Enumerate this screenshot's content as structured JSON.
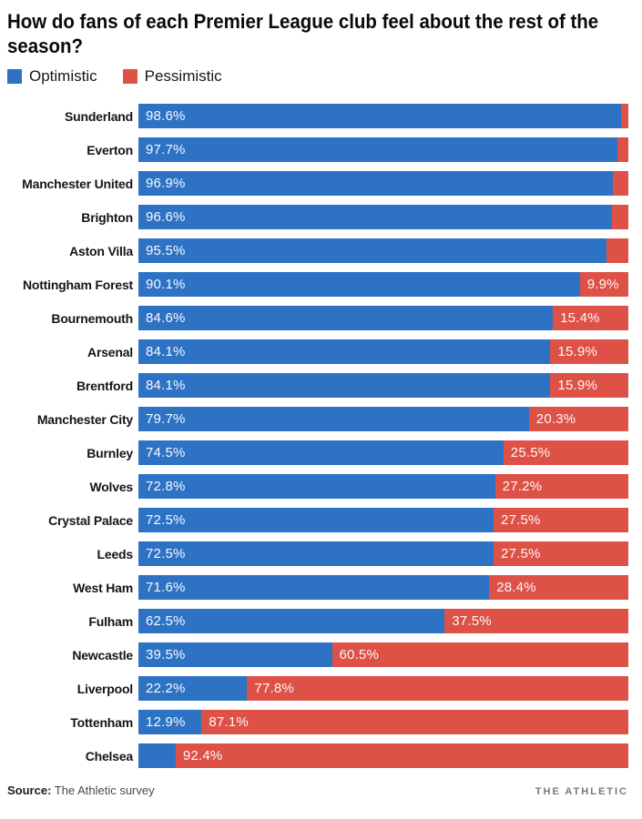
{
  "title": {
    "line1": "How do fans of each Premier League club feel about the rest of the",
    "line2": "season?"
  },
  "legend": {
    "items": [
      {
        "label": "Optimistic",
        "color": "#2e72c4"
      },
      {
        "label": "Pessimistic",
        "color": "#dd5147"
      }
    ]
  },
  "chart_data": {
    "type": "bar",
    "orientation": "horizontal",
    "stacked": true,
    "xlim": [
      0,
      100
    ],
    "unit": "%",
    "legend_position": "top",
    "grid": false,
    "categories": [
      "Sunderland",
      "Everton",
      "Manchester United",
      "Brighton",
      "Aston Villa",
      "Nottingham Forest",
      "Bournemouth",
      "Arsenal",
      "Brentford",
      "Manchester City",
      "Burnley",
      "Wolves",
      "Crystal Palace",
      "Leeds",
      "West Ham",
      "Fulham",
      "Newcastle",
      "Liverpool",
      "Tottenham",
      "Chelsea"
    ],
    "series": [
      {
        "name": "Optimistic",
        "color": "#2e72c4",
        "values": [
          98.6,
          97.7,
          96.9,
          96.6,
          95.5,
          90.1,
          84.6,
          84.1,
          84.1,
          79.7,
          74.5,
          72.8,
          72.5,
          72.5,
          71.6,
          62.5,
          39.5,
          22.2,
          12.9,
          7.6
        ]
      },
      {
        "name": "Pessimistic",
        "color": "#dd5147",
        "values": [
          1.4,
          2.3,
          3.1,
          3.4,
          4.5,
          9.9,
          15.4,
          15.9,
          15.9,
          20.3,
          25.5,
          27.2,
          27.5,
          27.5,
          28.4,
          37.5,
          60.5,
          77.8,
          87.1,
          92.4
        ]
      }
    ],
    "bar_labels": {
      "optimistic": [
        "98.6%",
        "97.7%",
        "96.9%",
        "96.6%",
        "95.5%",
        "90.1%",
        "84.6%",
        "84.1%",
        "84.1%",
        "79.7%",
        "74.5%",
        "72.8%",
        "72.5%",
        "72.5%",
        "71.6%",
        "62.5%",
        "39.5%",
        "22.2%",
        "12.9%",
        ""
      ],
      "pessimistic": [
        "",
        "",
        "",
        "",
        "",
        "9.9%",
        "15.4%",
        "15.9%",
        "15.9%",
        "20.3%",
        "25.5%",
        "27.2%",
        "27.5%",
        "27.5%",
        "28.4%",
        "37.5%",
        "60.5%",
        "77.8%",
        "87.1%",
        "92.4%"
      ]
    }
  },
  "footer": {
    "source_label": "Source:",
    "source_text": " The Athletic survey",
    "brand": "THE ATHLETIC"
  }
}
